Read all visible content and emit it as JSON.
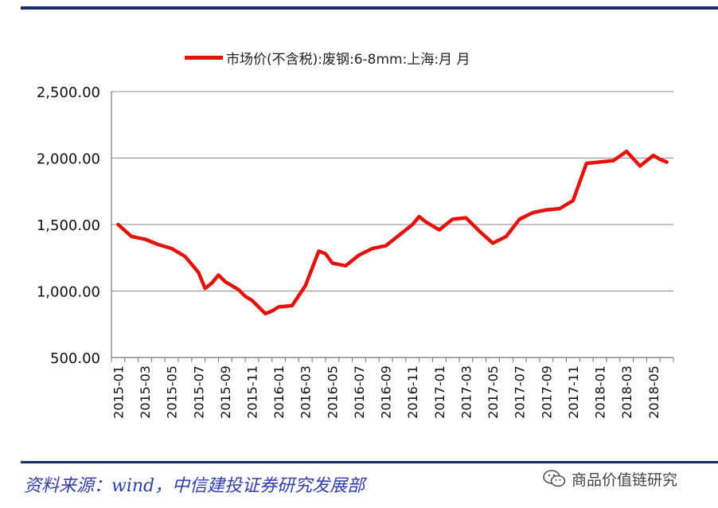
{
  "legend_label": "市场价(不含税):废钢:6-8mm:上海:月 月",
  "source": "资料来源：wind，中信建投证券研究发展部",
  "watermark_text": "商品价值链研究",
  "colors": {
    "series": "#e3120b",
    "rule": "#1b2c6b",
    "source": "#2f3fa8"
  },
  "chart_data": {
    "type": "line",
    "title": "",
    "xlabel": "",
    "ylabel": "",
    "ylim": [
      500,
      2500
    ],
    "yticks": [
      "500.00",
      "1,000.00",
      "1,500.00",
      "2,000.00",
      "2,500.00"
    ],
    "grid": true,
    "legend_position": "top",
    "xticks": [
      "2015-01",
      "2015-03",
      "2015-05",
      "2015-07",
      "2015-09",
      "2015-11",
      "2016-01",
      "2016-03",
      "2016-05",
      "2016-07",
      "2016-09",
      "2016-11",
      "2017-01",
      "2017-03",
      "2017-05",
      "2017-07",
      "2017-09",
      "2017-11",
      "2018-01",
      "2018-03",
      "2018-05"
    ],
    "series": [
      {
        "name": "市场价(不含税):废钢:6-8mm:上海:月 月",
        "color": "#e3120b",
        "x": [
          0,
          1,
          2,
          3,
          4,
          5,
          5.5,
          6,
          6.5,
          7,
          7.5,
          8,
          9,
          9.5,
          10,
          10.5,
          11,
          11.5,
          12,
          13,
          14,
          14.5,
          15,
          15.5,
          16,
          17,
          18,
          19,
          20,
          21,
          22,
          22.5,
          23,
          23.5,
          24,
          25,
          26,
          27,
          28,
          29,
          30,
          31,
          32,
          33,
          34,
          35,
          36,
          37,
          38,
          39,
          40,
          40.5,
          41
        ],
        "y": [
          1500,
          1410,
          1390,
          1350,
          1320,
          1260,
          1200,
          1140,
          1020,
          1060,
          1120,
          1070,
          1010,
          960,
          930,
          880,
          830,
          850,
          880,
          890,
          1040,
          1170,
          1300,
          1280,
          1210,
          1190,
          1270,
          1320,
          1340,
          1420,
          1500,
          1560,
          1520,
          1490,
          1460,
          1540,
          1550,
          1450,
          1360,
          1410,
          1540,
          1590,
          1610,
          1620,
          1680,
          1960,
          1970,
          1980,
          2050,
          1940,
          2020,
          1990,
          1970
        ]
      }
    ]
  }
}
